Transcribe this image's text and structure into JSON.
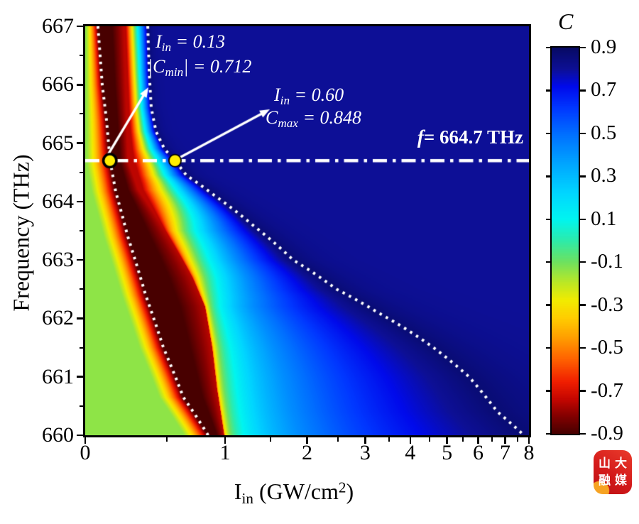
{
  "axes": {
    "x": {
      "tick_labels": [
        "0",
        "1",
        "2",
        "3",
        "4",
        "5",
        "6",
        "7",
        "8"
      ],
      "title_p1": "I",
      "title_sub": "in",
      "title_p2": " (GW/cm",
      "title_sup": "2",
      "title_p3": ")"
    },
    "y": {
      "tick_labels": [
        "667",
        "666",
        "665",
        "664",
        "663",
        "662",
        "661",
        "660"
      ],
      "title": "Frequency (THz)"
    }
  },
  "colorbar": {
    "title": "C",
    "tick_labels": [
      "0.9",
      "0.7",
      "0.5",
      "0.3",
      "0.1",
      "-0.1",
      "-0.3",
      "-0.5",
      "-0.7",
      "-0.9"
    ]
  },
  "annotations": {
    "cmin": {
      "l1_var": "I",
      "l1_sub": "in",
      "l1_rest": " = 0.13",
      "l2_pre": "|",
      "l2_var": "C",
      "l2_sub": "min",
      "l2_rest": "| = 0.712"
    },
    "cmax": {
      "l1_var": "I",
      "l1_sub": "in",
      "l1_rest": " = 0.60",
      "l2_var": "C",
      "l2_sub": "max",
      "l2_rest": " = 0.848"
    },
    "ref_line": {
      "var": "f",
      "rest": "= 664.7 THz"
    }
  },
  "logo": {
    "chars": [
      "山",
      "大",
      "融",
      "媒"
    ],
    "bg_color": "#d31a1a",
    "accent_color": "#f6a323"
  },
  "chart_data": {
    "type": "heatmap",
    "title": "",
    "xlabel": "I_in (GW/cm^2)",
    "ylabel": "Frequency (THz)",
    "colorbar_label": "C",
    "x_range": [
      0,
      8
    ],
    "x_scale": "log1p",
    "y_range": [
      660,
      667
    ],
    "color_range": [
      -0.9,
      0.9
    ],
    "x_major_ticks": [
      0,
      1,
      2,
      3,
      4,
      5,
      6,
      7,
      8
    ],
    "x_minor_ticks": [
      0.5,
      1.5,
      2.5,
      3.5,
      4.5,
      5.5,
      6.5,
      7.5
    ],
    "y_major_ticks": [
      667,
      666,
      665,
      664,
      663,
      662,
      661,
      660
    ],
    "y_minor_ticks": [
      666.5,
      665.5,
      664.5,
      663.5,
      662.5,
      661.5,
      660.5
    ],
    "colorbar_ticks": [
      0.9,
      0.7,
      0.5,
      0.3,
      0.1,
      -0.1,
      -0.3,
      -0.5,
      -0.7,
      -0.9
    ],
    "reference_line_f": 664.7,
    "markers": [
      {
        "I": 0.13,
        "f": 664.7,
        "C": -0.712,
        "ring_width": 3.6,
        "radius": 9.2
      },
      {
        "I": 0.6,
        "f": 664.7,
        "C": 0.848,
        "ring_width": 1.8,
        "radius": 8.6
      }
    ],
    "cmin_ridge_curve": [
      [
        667,
        0.065
      ],
      [
        666,
        0.088
      ],
      [
        665.4,
        0.111
      ],
      [
        664.7,
        0.131
      ],
      [
        664.17,
        0.163
      ],
      [
        663.4,
        0.235
      ],
      [
        662.4,
        0.349
      ],
      [
        661.5,
        0.473
      ],
      [
        660.65,
        0.626
      ],
      [
        660,
        0.838
      ]
    ],
    "cmax_ridge_curve": [
      [
        667,
        0.363
      ],
      [
        666.2,
        0.373
      ],
      [
        665.6,
        0.387
      ],
      [
        665.2,
        0.42
      ],
      [
        664.9,
        0.48
      ],
      [
        664.7,
        0.56
      ],
      [
        664.45,
        0.65
      ],
      [
        664.1,
        0.9
      ],
      [
        663.6,
        1.29
      ],
      [
        663.0,
        1.8
      ],
      [
        662.5,
        2.47
      ],
      [
        662.1,
        3.26
      ],
      [
        661.9,
        3.71
      ],
      [
        661.5,
        4.61
      ],
      [
        661.0,
        5.69
      ],
      [
        660.4,
        6.7
      ],
      [
        660.0,
        7.78
      ]
    ],
    "jump_boundary": [
      [
        667,
        0.21
      ],
      [
        665.5,
        0.225
      ],
      [
        664.7,
        0.235
      ],
      [
        664.2,
        0.3
      ],
      [
        663.4,
        0.51
      ],
      [
        662.7,
        0.7
      ],
      [
        662.2,
        0.81
      ],
      [
        661.5,
        0.875
      ],
      [
        660.8,
        0.92
      ],
      [
        660,
        0.99
      ]
    ],
    "colormap": [
      [
        -0.9,
        "#480000"
      ],
      [
        -0.82,
        "#820000"
      ],
      [
        -0.74,
        "#c40600"
      ],
      [
        -0.66,
        "#f01e00"
      ],
      [
        -0.55,
        "#ff6400"
      ],
      [
        -0.45,
        "#ffa000"
      ],
      [
        -0.36,
        "#ffcd00"
      ],
      [
        -0.28,
        "#f2eb00"
      ],
      [
        -0.2,
        "#bee823"
      ],
      [
        -0.1,
        "#6ee15f"
      ],
      [
        0.0,
        "#2debaa"
      ],
      [
        0.1,
        "#00f5f0"
      ],
      [
        0.22,
        "#00d7ff"
      ],
      [
        0.36,
        "#00a5ff"
      ],
      [
        0.5,
        "#006eff"
      ],
      [
        0.62,
        "#0037ff"
      ],
      [
        0.72,
        "#000aeb"
      ],
      [
        0.8,
        "#0d0f96"
      ],
      [
        0.9,
        "#070a64"
      ]
    ],
    "model": {
      "edge_C": -0.14,
      "left_width": 0.055,
      "left_pow": 1.3,
      "plateau_rise": 0.15,
      "right_amp": 1.77,
      "right_pow_table": [
        [
          667,
          1.0
        ],
        [
          664.7,
          1.25
        ],
        [
          663.5,
          0.5
        ],
        [
          662.2,
          0.24
        ],
        [
          660,
          0.21
        ]
      ],
      "far_C": 0.8,
      "peak_C": 0.87
    },
    "style": {
      "curve_color": "#ffffff",
      "ref_line_color": "#ffffff",
      "marker_fill": "#ffee00",
      "marker_stroke": "#000000",
      "arrow_color": "#ffffff"
    }
  }
}
